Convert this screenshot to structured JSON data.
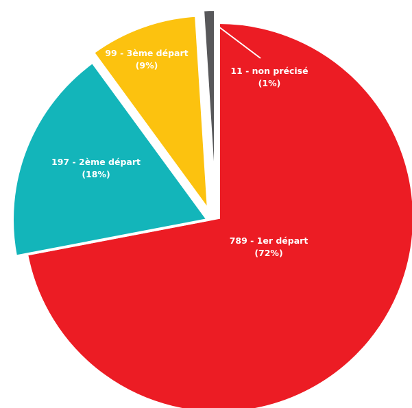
{
  "chart_data": {
    "type": "pie",
    "exploded": true,
    "legend": "none",
    "slices": [
      {
        "value": 789,
        "percent": 72,
        "line1": "789 - 1er départ",
        "line2": "(72%)",
        "color": "#ec1c24"
      },
      {
        "value": 197,
        "percent": 18,
        "line1": "197 - 2ème départ",
        "line2": "(18%)",
        "color": "#13b5ba"
      },
      {
        "value": 99,
        "percent": 9,
        "line1": "99 - 3ème départ",
        "line2": "(9%)",
        "color": "#fcc20f"
      },
      {
        "value": 11,
        "percent": 1,
        "line1": "11 - non précisé",
        "line2": "(1%)",
        "color": "#58585a"
      }
    ]
  }
}
